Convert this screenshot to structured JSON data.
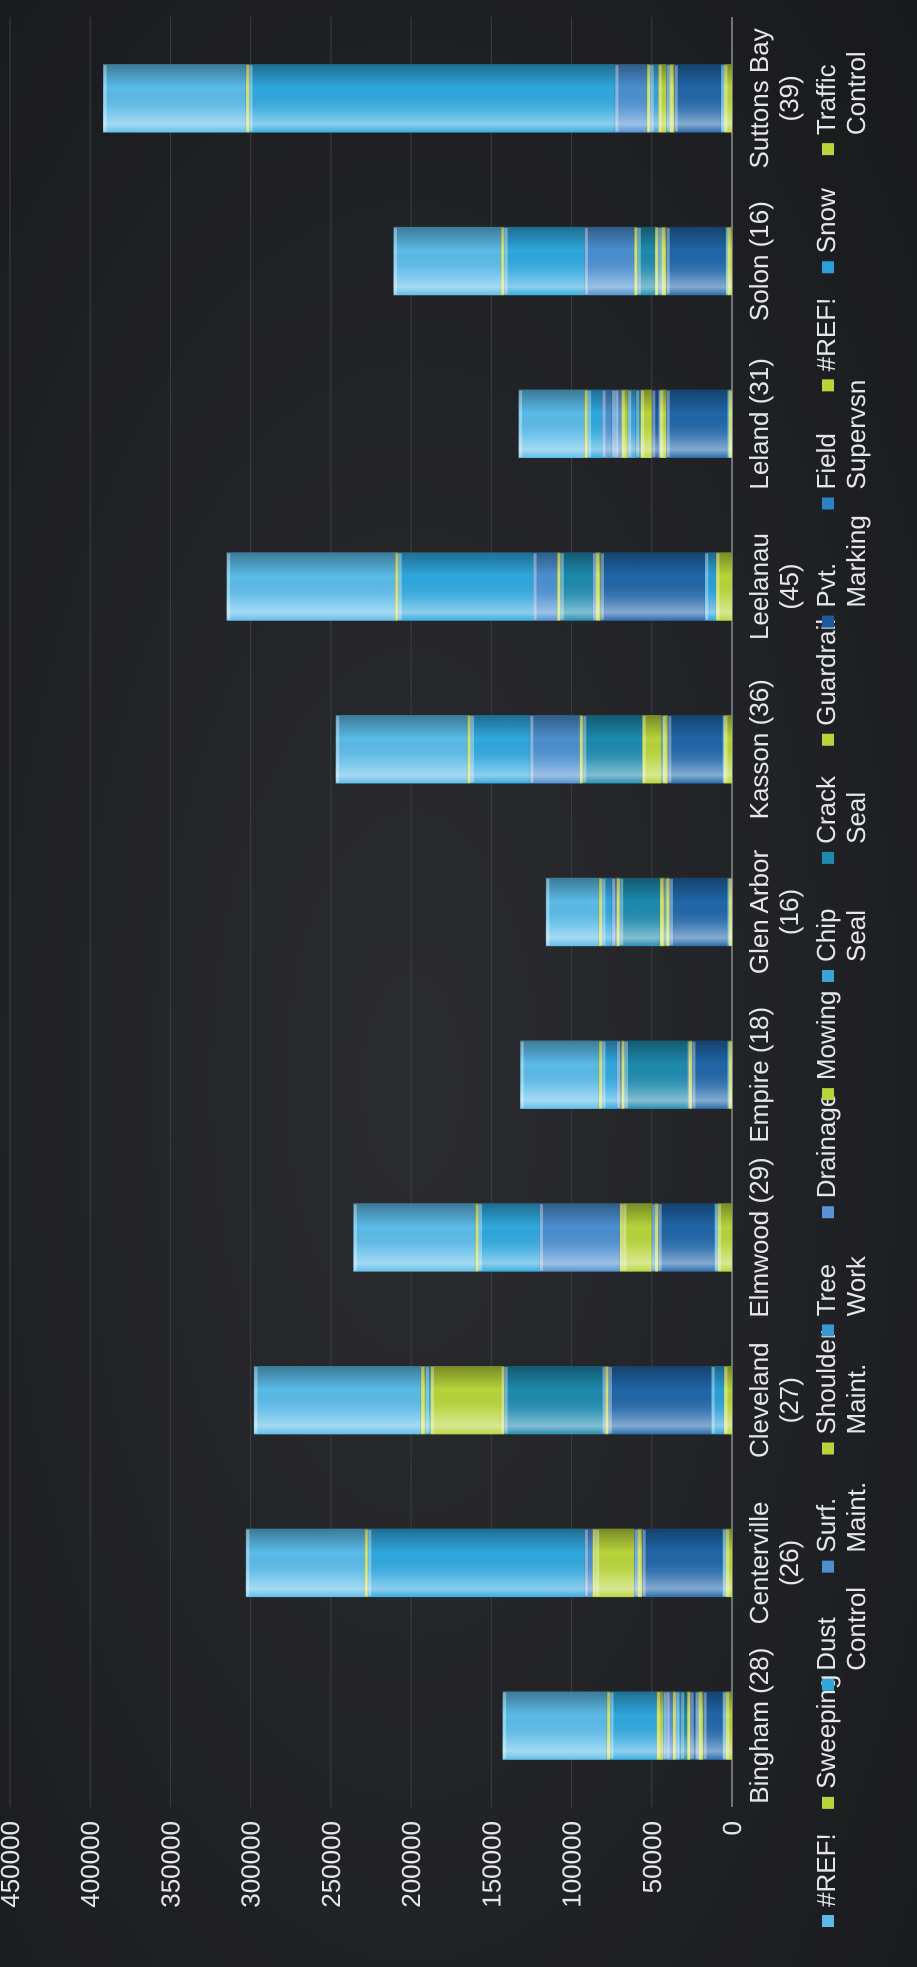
{
  "chart_data": {
    "type": "bar",
    "stacked": true,
    "ylim": [
      0,
      450000
    ],
    "yticks": [
      "0",
      "50000",
      "100000",
      "150000",
      "200000",
      "250000",
      "300000",
      "350000",
      "400000",
      "450000"
    ],
    "grid": true,
    "legend_position": "bottom",
    "categories": [
      "Bingham (28)",
      "Centerville (26)",
      "Cleveland (27)",
      "Elmwood (29)",
      "Empire (18)",
      "Glen Arbor (16)",
      "Kasson (36)",
      "Leelanau (45)",
      "Leland (31)",
      "Solon (16)",
      "Suttons Bay (39)"
    ],
    "series": [
      {
        "name": "Traffic Control",
        "color": "#b8d43a",
        "values": [
          4000,
          4000,
          5000,
          9000,
          2000,
          2000,
          5000,
          10000,
          2000,
          3000,
          5000
        ]
      },
      {
        "name": "Snow",
        "color": "#2a9fd8",
        "values": [
          2000,
          2000,
          8000,
          2000,
          1000,
          1000,
          1000,
          7000,
          1000,
          1000,
          2000
        ]
      },
      {
        "name": "#REF!",
        "color": "#2066a8",
        "values": [
          12000,
          50000,
          64000,
          35000,
          22000,
          36000,
          34000,
          65000,
          38000,
          37000,
          29000
        ]
      },
      {
        "name": "#REF!",
        "color": "#b8d43a",
        "values": [
          3000,
          3000,
          2000,
          2000,
          2000,
          2000,
          3000,
          3000,
          4000,
          3000,
          3000
        ]
      },
      {
        "name": "Field Supervsn",
        "color": "#2a83c8",
        "values": [
          2000,
          2000,
          2000,
          2000,
          1000,
          1000,
          1000,
          2000,
          1000,
          2000,
          2000
        ]
      },
      {
        "name": "Pvt. Marking",
        "color": "#1f5a9e",
        "values": [
          3000,
          0,
          0,
          0,
          0,
          0,
          0,
          0,
          4000,
          0,
          0
        ]
      },
      {
        "name": "Guardrail",
        "color": "#b8d43a",
        "values": [
          2000,
          24000,
          0,
          18000,
          0,
          3000,
          12000,
          0,
          7000,
          2000,
          5000
        ]
      },
      {
        "name": "Crack Seal",
        "color": "#1d8aae",
        "values": [
          4000,
          0,
          61000,
          0,
          39000,
          25000,
          37000,
          20000,
          3000,
          11000,
          0
        ]
      },
      {
        "name": "Chip Seal",
        "color": "#3aa0d8",
        "values": [
          3000,
          0,
          0,
          0,
          0,
          0,
          0,
          0,
          5000,
          0,
          5000
        ]
      },
      {
        "name": "Mowing",
        "color": "#b8d43a",
        "values": [
          2000,
          2000,
          2000,
          2000,
          2000,
          2000,
          2000,
          2000,
          4000,
          2000,
          2000
        ]
      },
      {
        "name": "Drainage",
        "color": "#5b93d6",
        "values": [
          4000,
          0,
          0,
          0,
          0,
          0,
          0,
          0,
          4000,
          0,
          0
        ]
      },
      {
        "name": "Tree Work",
        "color": "#3896d0",
        "values": [
          2000,
          0,
          0,
          0,
          0,
          0,
          0,
          0,
          2000,
          0,
          0
        ]
      },
      {
        "name": "Shoulder Maint.",
        "color": "#b8d43a",
        "values": [
          4000,
          0,
          44000,
          0,
          0,
          0,
          0,
          0,
          0,
          0,
          0
        ]
      },
      {
        "name": "Surf. Maint.",
        "color": "#4b8fd0",
        "values": [
          0,
          5000,
          0,
          50000,
          3000,
          3000,
          31000,
          15000,
          6000,
          31000,
          20000
        ]
      },
      {
        "name": "Dust Control",
        "color": "#2fa8de",
        "values": [
          29000,
          135000,
          3000,
          38000,
          9000,
          6000,
          37000,
          84000,
          9000,
          50000,
          228000
        ]
      },
      {
        "name": "Sweeping",
        "color": "#b8d43a",
        "values": [
          2000,
          2000,
          3000,
          2000,
          2000,
          2000,
          2000,
          2000,
          2000,
          2000,
          2000
        ]
      },
      {
        "name": "#REF!",
        "color": "#5bbbe8",
        "values": [
          65000,
          74000,
          104000,
          76000,
          49000,
          33000,
          82000,
          105000,
          41000,
          67000,
          89000
        ]
      }
    ],
    "legend": [
      {
        "name": "#REF!",
        "color": "#5bbbe8"
      },
      {
        "name": "Sweeping",
        "color": "#b8d43a"
      },
      {
        "name": "Dust Control",
        "color": "#2fa8de"
      },
      {
        "name": "Surf. Maint.",
        "color": "#4b8fd0"
      },
      {
        "name": "Shoulder Maint.",
        "color": "#b8d43a"
      },
      {
        "name": "Tree Work",
        "color": "#3896d0"
      },
      {
        "name": "Drainage",
        "color": "#5b93d6"
      },
      {
        "name": "Mowing",
        "color": "#b8d43a"
      },
      {
        "name": "Chip Seal",
        "color": "#3aa0d8"
      },
      {
        "name": "Crack Seal",
        "color": "#1d8aae"
      },
      {
        "name": "Guardrail",
        "color": "#b8d43a"
      },
      {
        "name": "Pvt. Marking",
        "color": "#1f5a9e"
      },
      {
        "name": "Field Supervsn",
        "color": "#2a83c8"
      },
      {
        "name": "#REF!",
        "color": "#b8d43a"
      },
      {
        "name": "Snow",
        "color": "#2a9fd8"
      },
      {
        "name": "Traffic Control",
        "color": "#b8d43a"
      }
    ]
  }
}
